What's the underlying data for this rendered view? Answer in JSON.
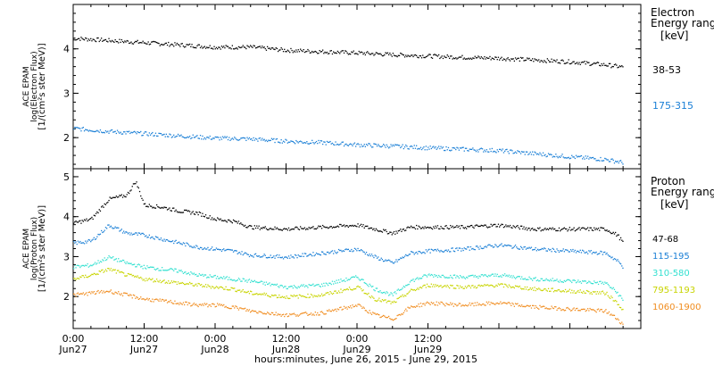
{
  "chart_data": [
    {
      "type": "scatter",
      "panel": "electron",
      "ylabel_lines": [
        "ACE EPAM",
        "log(Electron Flux)",
        "[1/(cm²s ster MeV)]"
      ],
      "ylim": [
        1.3,
        5.0
      ],
      "yticks": [
        2,
        3,
        4
      ],
      "xlim": [
        0,
        96
      ],
      "legend_title": [
        "Electron",
        "Energy range",
        "[keV]"
      ],
      "series": [
        {
          "name": "38-53",
          "color": "#000000",
          "x": [
            0,
            6,
            12,
            18,
            24,
            30,
            36,
            42,
            48,
            54,
            60,
            66,
            72,
            78,
            84,
            90,
            93
          ],
          "y": [
            4.25,
            4.2,
            4.15,
            4.1,
            4.05,
            4.05,
            3.98,
            3.95,
            3.92,
            3.88,
            3.85,
            3.82,
            3.8,
            3.76,
            3.72,
            3.65,
            3.6
          ]
        },
        {
          "name": "175-315",
          "color": "#1a7fd6",
          "x": [
            0,
            6,
            12,
            18,
            24,
            30,
            36,
            42,
            48,
            54,
            60,
            66,
            72,
            78,
            84,
            90,
            93
          ],
          "y": [
            2.22,
            2.15,
            2.1,
            2.05,
            2.0,
            1.98,
            1.93,
            1.9,
            1.85,
            1.82,
            1.78,
            1.75,
            1.72,
            1.65,
            1.58,
            1.52,
            1.45
          ]
        }
      ]
    },
    {
      "type": "scatter",
      "panel": "proton",
      "ylabel_lines": [
        "ACE EPAM",
        "log(Proton Flux)",
        "[1/(cm²s ster MeV)]"
      ],
      "ylim": [
        1.2,
        5.2
      ],
      "yticks": [
        2,
        3,
        4,
        5
      ],
      "xlim": [
        0,
        96
      ],
      "legend_title": [
        "Proton",
        "Energy range",
        "[keV]"
      ],
      "series": [
        {
          "name": "47-68",
          "color": "#000000",
          "x": [
            0,
            3,
            6,
            9,
            10.5,
            12,
            15,
            18,
            21,
            24,
            27,
            30,
            36,
            42,
            48,
            51,
            54,
            57,
            60,
            66,
            72,
            78,
            84,
            90,
            92,
            93
          ],
          "y": [
            3.85,
            3.95,
            4.45,
            4.55,
            4.9,
            4.3,
            4.25,
            4.15,
            4.1,
            3.95,
            3.9,
            3.75,
            3.7,
            3.75,
            3.8,
            3.7,
            3.6,
            3.75,
            3.75,
            3.75,
            3.8,
            3.7,
            3.7,
            3.7,
            3.55,
            3.35
          ]
        },
        {
          "name": "115-195",
          "color": "#1a7fd6",
          "x": [
            0,
            3,
            6,
            9,
            12,
            15,
            18,
            21,
            24,
            27,
            30,
            36,
            42,
            48,
            51,
            54,
            57,
            60,
            66,
            72,
            78,
            84,
            90,
            92,
            93
          ],
          "y": [
            3.35,
            3.4,
            3.8,
            3.6,
            3.55,
            3.45,
            3.35,
            3.25,
            3.2,
            3.15,
            3.05,
            3.0,
            3.1,
            3.2,
            3.0,
            2.85,
            3.1,
            3.15,
            3.2,
            3.3,
            3.2,
            3.15,
            3.1,
            2.9,
            2.75
          ]
        },
        {
          "name": "310-580",
          "color": "#33e0d0",
          "x": [
            0,
            3,
            6,
            9,
            12,
            15,
            18,
            21,
            24,
            27,
            30,
            36,
            42,
            48,
            51,
            54,
            57,
            60,
            66,
            72,
            78,
            84,
            90,
            92,
            93
          ],
          "y": [
            2.75,
            2.8,
            3.0,
            2.85,
            2.75,
            2.7,
            2.65,
            2.55,
            2.5,
            2.45,
            2.4,
            2.25,
            2.3,
            2.5,
            2.2,
            2.05,
            2.4,
            2.55,
            2.5,
            2.55,
            2.45,
            2.4,
            2.35,
            2.1,
            1.9
          ]
        },
        {
          "name": "795-1193",
          "color": "#c8d400",
          "x": [
            0,
            3,
            6,
            9,
            12,
            15,
            18,
            21,
            24,
            27,
            30,
            36,
            42,
            48,
            51,
            54,
            57,
            60,
            66,
            72,
            78,
            84,
            90,
            92,
            93
          ],
          "y": [
            2.45,
            2.55,
            2.7,
            2.55,
            2.45,
            2.4,
            2.35,
            2.3,
            2.25,
            2.2,
            2.1,
            2.0,
            2.05,
            2.25,
            1.95,
            1.85,
            2.15,
            2.3,
            2.25,
            2.3,
            2.2,
            2.15,
            2.1,
            1.85,
            1.65
          ]
        },
        {
          "name": "1060-1900",
          "color": "#f08c1e",
          "x": [
            0,
            3,
            6,
            9,
            12,
            15,
            18,
            21,
            24,
            27,
            30,
            36,
            42,
            48,
            51,
            54,
            57,
            60,
            66,
            72,
            78,
            84,
            90,
            92,
            93
          ],
          "y": [
            2.05,
            2.1,
            2.15,
            2.05,
            1.95,
            1.9,
            1.85,
            1.8,
            1.8,
            1.75,
            1.65,
            1.55,
            1.6,
            1.8,
            1.55,
            1.45,
            1.75,
            1.85,
            1.8,
            1.85,
            1.75,
            1.7,
            1.65,
            1.45,
            1.3
          ]
        }
      ]
    }
  ],
  "x_axis": {
    "ticks": [
      {
        "x": 0,
        "time": "0:00",
        "date": "Jun27"
      },
      {
        "x": 12,
        "time": "12:00",
        "date": "Jun27"
      },
      {
        "x": 24,
        "time": "0:00",
        "date": "Jun28"
      },
      {
        "x": 36,
        "time": "12:00",
        "date": "Jun28"
      },
      {
        "x": 48,
        "time": "0:00",
        "date": "Jun29"
      },
      {
        "x": 60,
        "time": "12:00",
        "date": "Jun29"
      }
    ],
    "xlabel": "hours:minutes, June 26, 2015 - June 29, 2015"
  },
  "colors": {
    "axes": "#000000",
    "background": "#ffffff"
  }
}
